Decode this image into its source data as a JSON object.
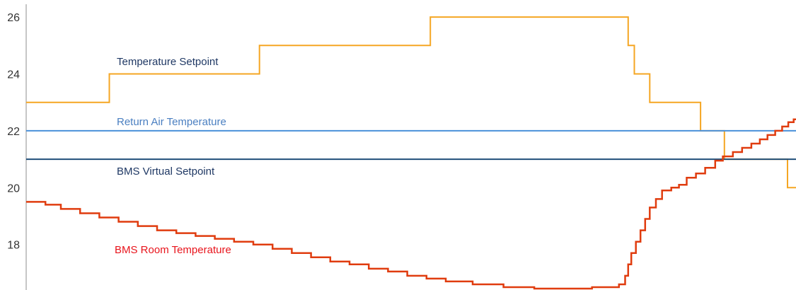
{
  "chart_data": {
    "type": "line",
    "title": "",
    "xlabel": "",
    "ylabel": "",
    "ylim": [
      16.4,
      26.6
    ],
    "yticks": [
      18,
      20,
      22,
      24,
      26
    ],
    "grid": false,
    "legend": "inline labels",
    "series": [
      {
        "name": "Temperature Setpoint",
        "color": "#f5a623",
        "step": true,
        "points": [
          [
            0.0,
            23
          ],
          [
            0.108,
            24
          ],
          [
            0.303,
            25
          ],
          [
            0.525,
            26
          ],
          [
            0.782,
            25
          ],
          [
            0.79,
            24
          ],
          [
            0.81,
            23
          ],
          [
            0.876,
            22
          ],
          [
            0.907,
            21
          ],
          [
            0.989,
            20
          ],
          [
            1.0,
            20
          ]
        ]
      },
      {
        "name": "Return Air Temperature",
        "color": "#4a90d9",
        "step": false,
        "points": [
          [
            0.0,
            22
          ],
          [
            1.0,
            22
          ]
        ]
      },
      {
        "name": "BMS Virtual Setpoint",
        "color": "#1f4e79",
        "step": false,
        "points": [
          [
            0.0,
            21
          ],
          [
            1.0,
            21
          ]
        ]
      },
      {
        "name": "BMS Room Temperature",
        "color": "#e03c0f",
        "step": true,
        "points": [
          [
            0.0,
            19.5
          ],
          [
            0.025,
            19.4
          ],
          [
            0.045,
            19.25
          ],
          [
            0.07,
            19.1
          ],
          [
            0.095,
            18.95
          ],
          [
            0.12,
            18.8
          ],
          [
            0.145,
            18.65
          ],
          [
            0.17,
            18.5
          ],
          [
            0.195,
            18.4
          ],
          [
            0.22,
            18.3
          ],
          [
            0.245,
            18.2
          ],
          [
            0.27,
            18.1
          ],
          [
            0.295,
            18.0
          ],
          [
            0.32,
            17.85
          ],
          [
            0.345,
            17.7
          ],
          [
            0.37,
            17.55
          ],
          [
            0.395,
            17.4
          ],
          [
            0.42,
            17.3
          ],
          [
            0.445,
            17.15
          ],
          [
            0.47,
            17.05
          ],
          [
            0.495,
            16.9
          ],
          [
            0.52,
            16.8
          ],
          [
            0.545,
            16.7
          ],
          [
            0.58,
            16.6
          ],
          [
            0.62,
            16.5
          ],
          [
            0.66,
            16.45
          ],
          [
            0.71,
            16.45
          ],
          [
            0.735,
            16.5
          ],
          [
            0.755,
            16.5
          ],
          [
            0.77,
            16.6
          ],
          [
            0.778,
            16.9
          ],
          [
            0.782,
            17.3
          ],
          [
            0.786,
            17.7
          ],
          [
            0.792,
            18.1
          ],
          [
            0.798,
            18.5
          ],
          [
            0.804,
            18.9
          ],
          [
            0.81,
            19.3
          ],
          [
            0.818,
            19.6
          ],
          [
            0.826,
            19.9
          ],
          [
            0.838,
            20.0
          ],
          [
            0.848,
            20.1
          ],
          [
            0.858,
            20.35
          ],
          [
            0.87,
            20.5
          ],
          [
            0.882,
            20.7
          ],
          [
            0.895,
            20.95
          ],
          [
            0.905,
            21.1
          ],
          [
            0.918,
            21.25
          ],
          [
            0.93,
            21.4
          ],
          [
            0.942,
            21.55
          ],
          [
            0.953,
            21.7
          ],
          [
            0.963,
            21.85
          ],
          [
            0.973,
            22.0
          ],
          [
            0.982,
            22.15
          ],
          [
            0.99,
            22.3
          ],
          [
            0.997,
            22.4
          ],
          [
            1.0,
            22.4
          ]
        ]
      }
    ]
  }
}
